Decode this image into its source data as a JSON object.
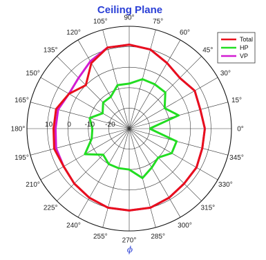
{
  "chart_data": {
    "type": "line",
    "subtype": "polar",
    "title": "Ceiling Plane",
    "xlabel": "ϕ",
    "ylabel": "",
    "angle_unit": "degrees",
    "angle_ticks": [
      0,
      15,
      30,
      45,
      60,
      75,
      90,
      105,
      120,
      135,
      150,
      165,
      180,
      195,
      210,
      225,
      240,
      255,
      270,
      285,
      300,
      315,
      330,
      345
    ],
    "angle_tick_labels": [
      "0°",
      "15°",
      "30°",
      "45°",
      "60°",
      "75°",
      "90°",
      "105°",
      "120°",
      "135°",
      "150°",
      "165°",
      "180°",
      "195°",
      "210°",
      "225°",
      "240°",
      "255°",
      "270°",
      "285°",
      "300°",
      "315°",
      "330°",
      "345°"
    ],
    "rlim": [
      -30,
      20
    ],
    "r_ticks": [
      -20,
      -10,
      0,
      10
    ],
    "r_tick_labels": [
      "-20",
      "-10",
      "0",
      "10"
    ],
    "grid": true,
    "legend_position": "top-right",
    "series": [
      {
        "name": "Total",
        "color": "#e8101b",
        "points": [
          [
            0,
            7
          ],
          [
            15,
            6
          ],
          [
            30,
            7
          ],
          [
            45,
            5
          ],
          [
            60,
            7
          ],
          [
            75,
            10
          ],
          [
            90,
            11
          ],
          [
            105,
            11
          ],
          [
            120,
            7
          ],
          [
            135,
            0
          ],
          [
            150,
            4
          ],
          [
            165,
            7
          ],
          [
            180,
            7
          ],
          [
            195,
            8
          ],
          [
            210,
            7
          ],
          [
            225,
            8
          ],
          [
            240,
            9
          ],
          [
            255,
            10
          ],
          [
            270,
            10
          ],
          [
            285,
            10
          ],
          [
            300,
            9
          ],
          [
            315,
            8
          ],
          [
            330,
            8
          ],
          [
            345,
            7
          ],
          [
            360,
            7
          ]
        ]
      },
      {
        "name": "HP",
        "color": "#22dd22",
        "points": [
          [
            0,
            -20
          ],
          [
            15,
            -5
          ],
          [
            30,
            -10
          ],
          [
            45,
            -5
          ],
          [
            60,
            -5
          ],
          [
            75,
            -5
          ],
          [
            90,
            -8
          ],
          [
            105,
            -8
          ],
          [
            120,
            -12
          ],
          [
            135,
            -12
          ],
          [
            150,
            -15
          ],
          [
            165,
            -10
          ],
          [
            180,
            -12
          ],
          [
            195,
            -11
          ],
          [
            210,
            -5
          ],
          [
            225,
            -12
          ],
          [
            240,
            -10
          ],
          [
            255,
            -10
          ],
          [
            270,
            -10
          ],
          [
            285,
            -5
          ],
          [
            300,
            -8
          ],
          [
            315,
            -10
          ],
          [
            330,
            -6
          ],
          [
            345,
            -6
          ],
          [
            360,
            -20
          ]
        ]
      },
      {
        "name": "VP",
        "color": "#d21bd2",
        "points": [
          [
            0,
            7
          ],
          [
            15,
            6
          ],
          [
            30,
            7
          ],
          [
            45,
            5
          ],
          [
            60,
            7
          ],
          [
            75,
            10
          ],
          [
            90,
            11
          ],
          [
            105,
            11
          ],
          [
            120,
            8
          ],
          [
            135,
            5
          ],
          [
            150,
            4
          ],
          [
            165,
            6
          ],
          [
            180,
            6
          ],
          [
            195,
            7
          ],
          [
            210,
            7
          ],
          [
            225,
            8
          ],
          [
            240,
            9
          ],
          [
            255,
            10
          ],
          [
            270,
            10
          ],
          [
            285,
            10
          ],
          [
            300,
            9
          ],
          [
            315,
            8
          ],
          [
            330,
            8
          ],
          [
            345,
            7
          ],
          [
            360,
            7
          ]
        ]
      }
    ]
  }
}
